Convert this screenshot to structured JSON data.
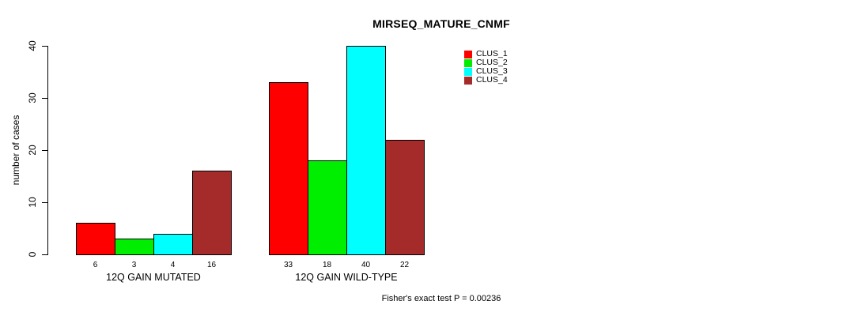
{
  "chart_data": {
    "type": "bar",
    "title": "MIRSEQ_MATURE_CNMF",
    "ylabel": "number of cases",
    "xlabel": "",
    "ylim": [
      0,
      40
    ],
    "yticks": [
      0,
      10,
      20,
      30,
      40
    ],
    "categories": [
      "12Q GAIN MUTATED",
      "12Q GAIN WILD-TYPE"
    ],
    "series": [
      {
        "name": "CLUS_1",
        "color": "#FF0000",
        "values": [
          6,
          33
        ]
      },
      {
        "name": "CLUS_2",
        "color": "#00EE00",
        "values": [
          3,
          18
        ]
      },
      {
        "name": "CLUS_3",
        "color": "#00FFFF",
        "values": [
          4,
          40
        ]
      },
      {
        "name": "CLUS_4",
        "color": "#A52A2A",
        "values": [
          16,
          22
        ]
      }
    ],
    "bar_value_labels": true,
    "legend_position": "top-right",
    "grid": false,
    "annotation": "Fisher's exact test P = 0.00236"
  }
}
